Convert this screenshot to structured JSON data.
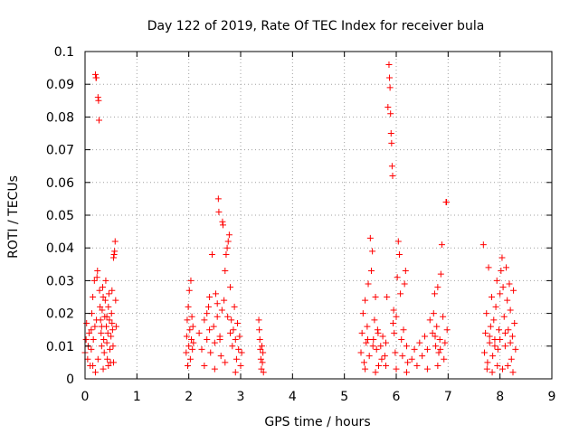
{
  "chart_data": {
    "type": "scatter",
    "title": "Day 122 of 2019, Rate Of TEC Index for receiver bula",
    "xlabel": "GPS time / hours",
    "ylabel": "ROTI / TECUs",
    "xlim": [
      0,
      9
    ],
    "ylim": [
      0,
      0.1
    ],
    "xticks": [
      0,
      1,
      2,
      3,
      4,
      5,
      6,
      7,
      8,
      9
    ],
    "xtick_labels": [
      "0",
      "1",
      "2",
      "3",
      "4",
      "5",
      "6",
      "7",
      "8",
      "9"
    ],
    "yticks": [
      0,
      0.01,
      0.02,
      0.03,
      0.04,
      0.05,
      0.06,
      0.07,
      0.08,
      0.09,
      0.1
    ],
    "ytick_labels": [
      "0",
      "0.01",
      "0.02",
      "0.03",
      "0.04",
      "0.05",
      "0.06",
      "0.07",
      "0.08",
      "0.09",
      "0.1"
    ],
    "grid": true,
    "marker": "+",
    "marker_color": "#ff0000",
    "series": [
      {
        "name": "ROTI",
        "points": [
          [
            0.0,
            0.008
          ],
          [
            0.02,
            0.012
          ],
          [
            0.03,
            0.017
          ],
          [
            0.05,
            0.006
          ],
          [
            0.06,
            0.01
          ],
          [
            0.08,
            0.014
          ],
          [
            0.1,
            0.004
          ],
          [
            0.12,
            0.009
          ],
          [
            0.13,
            0.02
          ],
          [
            0.15,
            0.025
          ],
          [
            0.16,
            0.012
          ],
          [
            0.18,
            0.03
          ],
          [
            0.19,
            0.016
          ],
          [
            0.2,
            0.093
          ],
          [
            0.21,
            0.092
          ],
          [
            0.22,
            0.092
          ],
          [
            0.23,
            0.031
          ],
          [
            0.24,
            0.033
          ],
          [
            0.25,
            0.086
          ],
          [
            0.26,
            0.085
          ],
          [
            0.27,
            0.079
          ],
          [
            0.28,
            0.027
          ],
          [
            0.29,
            0.022
          ],
          [
            0.3,
            0.018
          ],
          [
            0.31,
            0.014
          ],
          [
            0.32,
            0.01
          ],
          [
            0.33,
            0.021
          ],
          [
            0.34,
            0.028
          ],
          [
            0.35,
            0.025
          ],
          [
            0.36,
            0.012
          ],
          [
            0.37,
            0.008
          ],
          [
            0.38,
            0.019
          ],
          [
            0.39,
            0.024
          ],
          [
            0.4,
            0.03
          ],
          [
            0.41,
            0.016
          ],
          [
            0.42,
            0.011
          ],
          [
            0.43,
            0.006
          ],
          [
            0.44,
            0.014
          ],
          [
            0.45,
            0.022
          ],
          [
            0.46,
            0.026
          ],
          [
            0.47,
            0.018
          ],
          [
            0.48,
            0.009
          ],
          [
            0.49,
            0.005
          ],
          [
            0.5,
            0.013
          ],
          [
            0.51,
            0.02
          ],
          [
            0.52,
            0.027
          ],
          [
            0.53,
            0.015
          ],
          [
            0.54,
            0.01
          ],
          [
            0.55,
            0.037
          ],
          [
            0.56,
            0.038
          ],
          [
            0.57,
            0.039
          ],
          [
            0.58,
            0.042
          ],
          [
            0.59,
            0.024
          ],
          [
            0.6,
            0.016
          ],
          [
            0.15,
            0.004
          ],
          [
            0.2,
            0.002
          ],
          [
            0.25,
            0.006
          ],
          [
            0.35,
            0.003
          ],
          [
            0.45,
            0.004
          ],
          [
            0.55,
            0.005
          ],
          [
            0.12,
            0.015
          ],
          [
            0.22,
            0.018
          ],
          [
            0.32,
            0.016
          ],
          [
            0.42,
            0.019
          ],
          [
            0.52,
            0.017
          ],
          [
            1.95,
            0.008
          ],
          [
            1.96,
            0.013
          ],
          [
            1.97,
            0.018
          ],
          [
            1.98,
            0.004
          ],
          [
            1.99,
            0.022
          ],
          [
            2.0,
            0.01
          ],
          [
            2.01,
            0.027
          ],
          [
            2.02,
            0.015
          ],
          [
            2.03,
            0.006
          ],
          [
            2.04,
            0.03
          ],
          [
            2.05,
            0.012
          ],
          [
            2.06,
            0.019
          ],
          [
            2.07,
            0.009
          ],
          [
            2.08,
            0.016
          ],
          [
            2.09,
            0.011
          ],
          [
            2.2,
            0.014
          ],
          [
            2.25,
            0.009
          ],
          [
            2.3,
            0.018
          ],
          [
            2.35,
            0.012
          ],
          [
            2.38,
            0.022
          ],
          [
            2.4,
            0.025
          ],
          [
            2.42,
            0.008
          ],
          [
            2.45,
            0.038
          ],
          [
            2.48,
            0.016
          ],
          [
            2.5,
            0.011
          ],
          [
            2.52,
            0.026
          ],
          [
            2.55,
            0.019
          ],
          [
            2.57,
            0.055
          ],
          [
            2.58,
            0.051
          ],
          [
            2.6,
            0.013
          ],
          [
            2.62,
            0.007
          ],
          [
            2.64,
            0.021
          ],
          [
            2.65,
            0.048
          ],
          [
            2.66,
            0.047
          ],
          [
            2.68,
            0.024
          ],
          [
            2.7,
            0.033
          ],
          [
            2.72,
            0.038
          ],
          [
            2.74,
            0.04
          ],
          [
            2.76,
            0.042
          ],
          [
            2.78,
            0.044
          ],
          [
            2.8,
            0.028
          ],
          [
            2.82,
            0.018
          ],
          [
            2.84,
            0.01
          ],
          [
            2.86,
            0.015
          ],
          [
            2.88,
            0.022
          ],
          [
            2.9,
            0.012
          ],
          [
            2.92,
            0.006
          ],
          [
            2.94,
            0.017
          ],
          [
            2.96,
            0.009
          ],
          [
            2.98,
            0.013
          ],
          [
            3.0,
            0.004
          ],
          [
            3.02,
            0.008
          ],
          [
            2.3,
            0.004
          ],
          [
            2.5,
            0.003
          ],
          [
            2.7,
            0.005
          ],
          [
            2.9,
            0.002
          ],
          [
            2.4,
            0.015
          ],
          [
            2.6,
            0.012
          ],
          [
            2.8,
            0.014
          ],
          [
            2.35,
            0.02
          ],
          [
            2.55,
            0.023
          ],
          [
            2.75,
            0.019
          ],
          [
            3.35,
            0.018
          ],
          [
            3.36,
            0.015
          ],
          [
            3.37,
            0.012
          ],
          [
            3.38,
            0.009
          ],
          [
            3.39,
            0.006
          ],
          [
            3.4,
            0.003
          ],
          [
            3.41,
            0.01
          ],
          [
            3.42,
            0.005
          ],
          [
            3.43,
            0.008
          ],
          [
            3.44,
            0.002
          ],
          [
            5.32,
            0.008
          ],
          [
            5.34,
            0.014
          ],
          [
            5.36,
            0.02
          ],
          [
            5.38,
            0.005
          ],
          [
            5.4,
            0.024
          ],
          [
            5.42,
            0.011
          ],
          [
            5.44,
            0.016
          ],
          [
            5.46,
            0.029
          ],
          [
            5.48,
            0.007
          ],
          [
            5.5,
            0.043
          ],
          [
            5.52,
            0.033
          ],
          [
            5.54,
            0.039
          ],
          [
            5.56,
            0.012
          ],
          [
            5.58,
            0.018
          ],
          [
            5.6,
            0.025
          ],
          [
            5.62,
            0.009
          ],
          [
            5.64,
            0.015
          ],
          [
            5.66,
            0.004
          ],
          [
            5.7,
            0.01
          ],
          [
            5.72,
            0.006
          ],
          [
            5.74,
            0.013
          ],
          [
            5.78,
            0.007
          ],
          [
            5.8,
            0.011
          ],
          [
            5.82,
            0.025
          ],
          [
            5.84,
            0.083
          ],
          [
            5.86,
            0.096
          ],
          [
            5.87,
            0.092
          ],
          [
            5.88,
            0.089
          ],
          [
            5.89,
            0.081
          ],
          [
            5.9,
            0.075
          ],
          [
            5.91,
            0.072
          ],
          [
            5.92,
            0.065
          ],
          [
            5.93,
            0.062
          ],
          [
            5.94,
            0.017
          ],
          [
            5.95,
            0.021
          ],
          [
            5.96,
            0.014
          ],
          [
            5.98,
            0.008
          ],
          [
            6.0,
            0.019
          ],
          [
            6.02,
            0.031
          ],
          [
            6.04,
            0.042
          ],
          [
            6.06,
            0.038
          ],
          [
            6.08,
            0.026
          ],
          [
            6.1,
            0.012
          ],
          [
            6.12,
            0.007
          ],
          [
            6.14,
            0.015
          ],
          [
            6.16,
            0.029
          ],
          [
            6.18,
            0.033
          ],
          [
            6.2,
            0.01
          ],
          [
            6.22,
            0.005
          ],
          [
            6.3,
            0.006
          ],
          [
            6.35,
            0.009
          ],
          [
            6.4,
            0.004
          ],
          [
            6.45,
            0.011
          ],
          [
            6.5,
            0.007
          ],
          [
            6.55,
            0.013
          ],
          [
            6.6,
            0.009
          ],
          [
            6.65,
            0.018
          ],
          [
            6.7,
            0.014
          ],
          [
            6.72,
            0.02
          ],
          [
            6.74,
            0.026
          ],
          [
            6.76,
            0.01
          ],
          [
            6.78,
            0.016
          ],
          [
            6.8,
            0.028
          ],
          [
            6.82,
            0.008
          ],
          [
            6.84,
            0.012
          ],
          [
            6.86,
            0.032
          ],
          [
            6.88,
            0.041
          ],
          [
            6.9,
            0.019
          ],
          [
            6.92,
            0.006
          ],
          [
            6.94,
            0.011
          ],
          [
            6.96,
            0.054
          ],
          [
            6.97,
            0.054
          ],
          [
            6.98,
            0.015
          ],
          [
            5.4,
            0.003
          ],
          [
            5.6,
            0.002
          ],
          [
            5.8,
            0.004
          ],
          [
            6.0,
            0.003
          ],
          [
            6.2,
            0.002
          ],
          [
            6.6,
            0.003
          ],
          [
            6.8,
            0.004
          ],
          [
            5.45,
            0.012
          ],
          [
            5.55,
            0.01
          ],
          [
            5.65,
            0.014
          ],
          [
            6.75,
            0.013
          ],
          [
            6.85,
            0.009
          ],
          [
            7.68,
            0.041
          ],
          [
            7.7,
            0.008
          ],
          [
            7.72,
            0.014
          ],
          [
            7.74,
            0.02
          ],
          [
            7.76,
            0.005
          ],
          [
            7.78,
            0.034
          ],
          [
            7.8,
            0.011
          ],
          [
            7.82,
            0.016
          ],
          [
            7.84,
            0.025
          ],
          [
            7.86,
            0.007
          ],
          [
            7.88,
            0.018
          ],
          [
            7.9,
            0.012
          ],
          [
            7.92,
            0.022
          ],
          [
            7.94,
            0.03
          ],
          [
            7.96,
            0.009
          ],
          [
            7.98,
            0.015
          ],
          [
            8.0,
            0.026
          ],
          [
            8.02,
            0.033
          ],
          [
            8.04,
            0.037
          ],
          [
            8.06,
            0.028
          ],
          [
            8.08,
            0.019
          ],
          [
            8.1,
            0.01
          ],
          [
            8.12,
            0.034
          ],
          [
            8.14,
            0.024
          ],
          [
            8.16,
            0.015
          ],
          [
            8.18,
            0.029
          ],
          [
            8.2,
            0.021
          ],
          [
            8.22,
            0.006
          ],
          [
            8.24,
            0.013
          ],
          [
            8.26,
            0.027
          ],
          [
            8.28,
            0.017
          ],
          [
            8.3,
            0.009
          ],
          [
            7.75,
            0.003
          ],
          [
            7.85,
            0.002
          ],
          [
            7.95,
            0.004
          ],
          [
            8.05,
            0.003
          ],
          [
            8.15,
            0.004
          ],
          [
            8.25,
            0.002
          ],
          [
            7.8,
            0.013
          ],
          [
            7.9,
            0.01
          ],
          [
            8.0,
            0.012
          ],
          [
            8.1,
            0.014
          ],
          [
            8.2,
            0.011
          ]
        ]
      }
    ]
  }
}
